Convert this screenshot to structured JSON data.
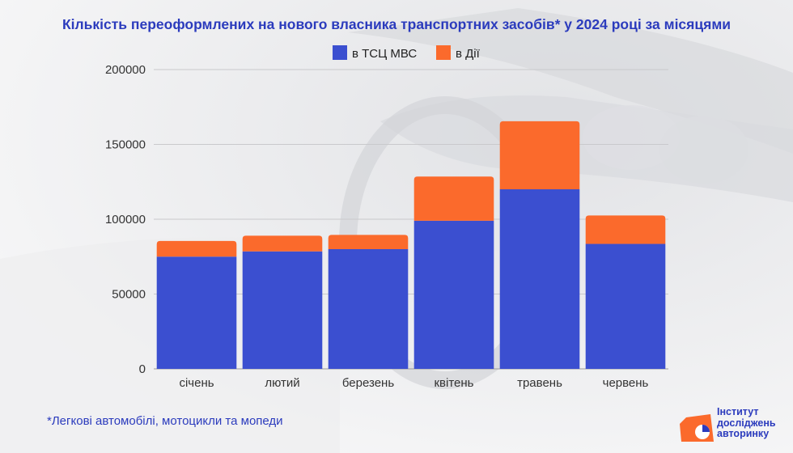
{
  "title": "Кількість переоформлених на нового власника транспортних засобів* у 2024 році за місяцями",
  "footnote": "*Легкові автомобілі, мотоцикли та мопеди",
  "logo": {
    "lines": [
      "Інститут",
      "досліджень",
      "авторинку"
    ]
  },
  "colors": {
    "accent": "#2b3bbd",
    "series_tsc": "#3b4fd0",
    "series_diia": "#fb6a2c"
  },
  "chart_data": {
    "type": "bar",
    "stacked": true,
    "categories": [
      "січень",
      "лютий",
      "березень",
      "квітень",
      "травень",
      "червень"
    ],
    "series": [
      {
        "name": "в ТСЦ МВС",
        "values": [
          75000,
          78500,
          80000,
          99000,
          120000,
          83500
        ]
      },
      {
        "name": "в Дії",
        "values": [
          10500,
          10500,
          9500,
          29500,
          45500,
          19000
        ]
      }
    ],
    "y_ticks": [
      "0",
      "50000",
      "100000",
      "150000",
      "200000"
    ],
    "ylim": [
      0,
      200000
    ],
    "grid": true,
    "legend_position": "top-center"
  }
}
